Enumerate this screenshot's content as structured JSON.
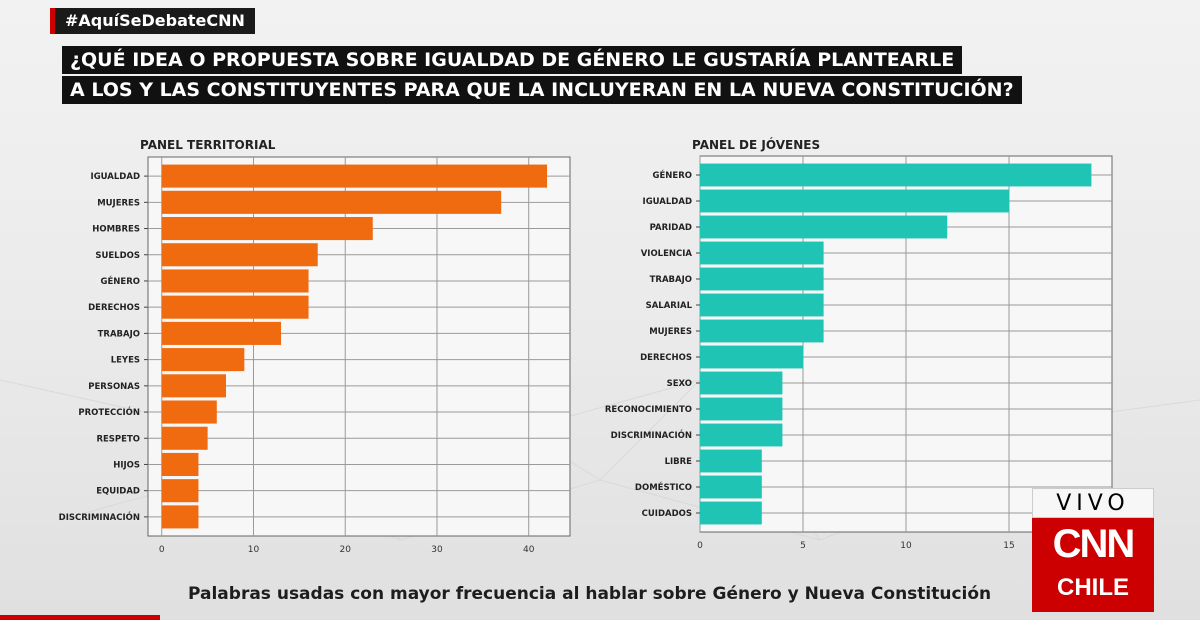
{
  "header": {
    "hashtag": "#AquíSeDebateCNN",
    "question_line1": "¿QUÉ IDEA O PROPUESTA SOBRE IGUALDAD DE GÉNERO LE GUSTARÍA PLANTEARLE",
    "question_line2": "A LOS Y LAS CONSTITUYENTES PARA QUE LA INCLUYERAN EN LA NUEVA CONSTITUCIÓN?"
  },
  "caption": "Palabras usadas con mayor frecuencia al hablar sobre Género y Nueva Constitución",
  "badge": {
    "live": "VIVO",
    "logo": "CNN",
    "region": "CHILE"
  },
  "colors": {
    "orange": "#f06a0f",
    "teal": "#1fc4b4",
    "brand_red": "#cc0000"
  },
  "chart_data": [
    {
      "type": "bar",
      "orientation": "horizontal",
      "title": "PANEL TERRITORIAL",
      "categories": [
        "IGUALDAD",
        "MUJERES",
        "HOMBRES",
        "SUELDOS",
        "GÉNERO",
        "DERECHOS",
        "TRABAJO",
        "LEYES",
        "PERSONAS",
        "PROTECCIÓN",
        "RESPETO",
        "HIJOS",
        "EQUIDAD",
        "DISCRIMINACIÓN"
      ],
      "values": [
        42,
        37,
        23,
        17,
        16,
        16,
        13,
        9,
        7,
        6,
        5,
        4,
        4,
        4
      ],
      "xlim": [
        -1.5,
        44.5
      ],
      "xticks": [
        0,
        10,
        20,
        30,
        40
      ],
      "grid": true
    },
    {
      "type": "bar",
      "orientation": "horizontal",
      "title": "PANEL DE JÓVENES",
      "categories": [
        "GÉNERO",
        "IGUALDAD",
        "PARIDAD",
        "VIOLENCIA",
        "TRABAJO",
        "SALARIAL",
        "MUJERES",
        "DERECHOS",
        "SEXO",
        "RECONOCIMIENTO",
        "DISCRIMINACIÓN",
        "LIBRE",
        "DOMÉSTICO",
        "CUIDADOS"
      ],
      "values": [
        19,
        15,
        12,
        6,
        6,
        6,
        6,
        5,
        4,
        4,
        4,
        3,
        3,
        3
      ],
      "xlim": [
        0,
        20
      ],
      "xticks": [
        0,
        5,
        10,
        15
      ],
      "grid": true
    }
  ]
}
